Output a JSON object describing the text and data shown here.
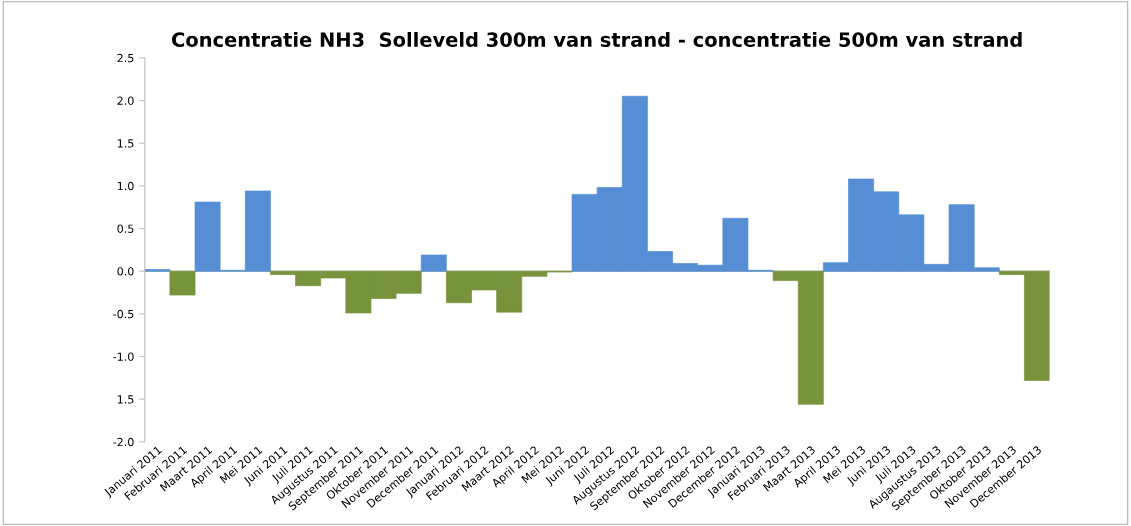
{
  "chart_data": {
    "type": "bar",
    "title": "Concentratie NH3  Solleveld 300m van strand - concentratie 500m van strand",
    "categories": [
      "Januari 2011",
      "Februari 2011",
      "Maart 2011",
      "April 2011",
      "Mei 2011",
      "Juni 2011",
      "Juli 2011",
      "Augustus 2011",
      "September 2011",
      "Oktober 2011",
      "November 2011",
      "December 2011",
      "Januari 2012",
      "Februari 2012",
      "Maart 2012",
      "April 2012",
      "Mei 2012",
      "Juni 2012",
      "Juli 2012",
      "Augustus 2012",
      "September 2012",
      "Oktober 2012",
      "November 2012",
      "December 2012",
      "Januari 2013",
      "Februari 2013",
      "Maart 2013",
      "April 2013",
      "Mei 2013",
      "Juni 2013",
      "Juli 2013",
      "Augaustus 2013",
      "September 2013",
      "Oktober 2013",
      "November 2013",
      "December 2013"
    ],
    "values": [
      0.02,
      -0.28,
      0.81,
      0.01,
      0.94,
      -0.04,
      -0.17,
      -0.08,
      -0.49,
      -0.32,
      -0.26,
      0.19,
      -0.37,
      -0.22,
      -0.48,
      -0.06,
      -0.01,
      0.9,
      0.98,
      2.05,
      0.23,
      0.09,
      0.07,
      0.62,
      0.01,
      -0.11,
      -1.56,
      0.1,
      1.08,
      0.93,
      0.66,
      0.08,
      0.78,
      0.04,
      -0.04,
      -1.28
    ],
    "colors": [
      "#558ed5",
      "#77933c",
      "#558ed5",
      "#558ed5",
      "#558ed5",
      "#77933c",
      "#77933c",
      "#77933c",
      "#77933c",
      "#77933c",
      "#77933c",
      "#558ed5",
      "#77933c",
      "#77933c",
      "#77933c",
      "#77933c",
      "#77933c",
      "#558ed5",
      "#558ed5",
      "#558ed5",
      "#558ed5",
      "#558ed5",
      "#558ed5",
      "#558ed5",
      "#558ed5",
      "#77933c",
      "#77933c",
      "#558ed5",
      "#558ed5",
      "#558ed5",
      "#558ed5",
      "#558ed5",
      "#558ed5",
      "#558ed5",
      "#77933c",
      "#77933c"
    ],
    "ylim": [
      -2.0,
      2.5
    ],
    "yticks": [
      {
        "value": -2.0,
        "label": "-2.0"
      },
      {
        "value": -1.5,
        "label": "1.5"
      },
      {
        "value": -1.0,
        "label": "-1.0"
      },
      {
        "value": -0.5,
        "label": "-0.5"
      },
      {
        "value": 0.0,
        "label": "0.0"
      },
      {
        "value": 0.5,
        "label": "0.5"
      },
      {
        "value": 1.0,
        "label": "1.0"
      },
      {
        "value": 1.5,
        "label": "1.5"
      },
      {
        "value": 2.0,
        "label": "2.0"
      },
      {
        "value": 2.5,
        "label": "2.5"
      }
    ],
    "line_style": "solid"
  }
}
